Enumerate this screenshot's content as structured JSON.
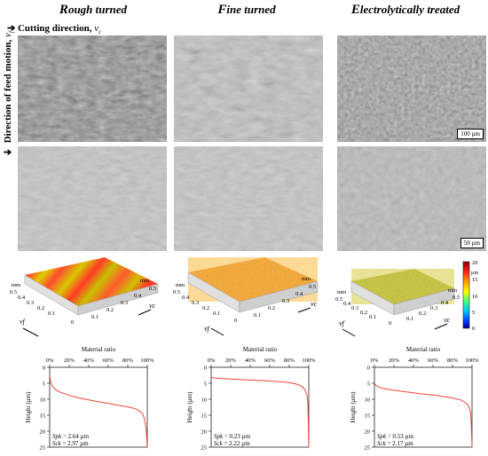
{
  "columns": [
    {
      "first": "R",
      "rest": "ough turned"
    },
    {
      "first": "F",
      "rest": "ine turned"
    },
    {
      "first": "E",
      "rest": "lectrolytically treated"
    }
  ],
  "cutting_direction": {
    "label": "Cutting direction,",
    "symbol": "vc"
  },
  "feed_direction": {
    "label": "Direction of feed motion,",
    "symbol": "vf"
  },
  "scalebars": {
    "top": "100 µm",
    "bottom": "50 µm"
  },
  "topo": {
    "axis_ticks": [
      "0.5",
      "0.4",
      "0.3",
      "0.2",
      "0.1",
      "0"
    ],
    "axis_unit": "mm",
    "vf": "vf",
    "vc": "vc",
    "colorbar": {
      "ticks": [
        "20",
        "15",
        "10",
        "5",
        "0"
      ],
      "unit": "µm"
    }
  },
  "chart_data": [
    {
      "type": "line",
      "title": "",
      "xlabel": "Material ratio",
      "ylabel": "Height (µm)",
      "xticks": [
        "0%",
        "20%",
        "40%",
        "60%",
        "80%",
        "100%"
      ],
      "yticks": [
        "0",
        "5",
        "10",
        "15",
        "20",
        "25"
      ],
      "xlim": [
        0,
        100
      ],
      "ylim": [
        0,
        25
      ],
      "y_inverted": true,
      "series": [
        {
          "x": [
            0,
            1,
            3,
            6,
            10,
            20,
            30,
            40,
            50,
            60,
            70,
            80,
            88,
            92,
            95,
            97,
            98,
            99,
            99.5,
            100
          ],
          "y": [
            2.5,
            4.6,
            6.0,
            7.0,
            7.7,
            8.8,
            9.6,
            10.2,
            10.8,
            11.3,
            11.9,
            12.4,
            13.0,
            13.6,
            14.5,
            16.0,
            17.5,
            20.0,
            22.5,
            25
          ]
        }
      ],
      "annotations": [
        {
          "label": "Spk",
          "value": " = 2.64 µm"
        },
        {
          "label": "Sck",
          "value": " = 2.97 µm"
        }
      ]
    },
    {
      "type": "line",
      "title": "",
      "xlabel": "Material ratio",
      "ylabel": "Height (µm)",
      "xticks": [
        "0%",
        "20%",
        "40%",
        "60%",
        "80%",
        "100%"
      ],
      "yticks": [
        "0",
        "5",
        "10",
        "15",
        "20",
        "25"
      ],
      "xlim": [
        0,
        100
      ],
      "ylim": [
        0,
        25
      ],
      "y_inverted": true,
      "series": [
        {
          "x": [
            0,
            2,
            5,
            10,
            20,
            30,
            40,
            50,
            60,
            70,
            80,
            88,
            93,
            96,
            98,
            99,
            99.5,
            100
          ],
          "y": [
            3.1,
            3.3,
            3.4,
            3.5,
            3.7,
            3.85,
            4.0,
            4.15,
            4.3,
            4.5,
            4.8,
            5.3,
            6.0,
            7.0,
            8.5,
            11.0,
            16.0,
            25
          ]
        }
      ],
      "annotations": [
        {
          "label": "Spk",
          "value": " = 0.23 µm"
        },
        {
          "label": "Sck",
          "value": " = 2.22 µm"
        }
      ]
    },
    {
      "type": "line",
      "title": "",
      "xlabel": "Material ratio",
      "ylabel": "Height (µm)",
      "xticks": [
        "0%",
        "20%",
        "40%",
        "60%",
        "80%",
        "100%"
      ],
      "yticks": [
        "0",
        "5",
        "10",
        "15",
        "20",
        "25"
      ],
      "xlim": [
        0,
        100
      ],
      "ylim": [
        0,
        25
      ],
      "y_inverted": true,
      "series": [
        {
          "x": [
            0,
            2,
            5,
            10,
            20,
            30,
            40,
            50,
            60,
            70,
            80,
            88,
            92,
            95,
            97,
            98.5,
            99.3,
            100
          ],
          "y": [
            5.0,
            5.8,
            6.3,
            6.7,
            7.2,
            7.6,
            8.0,
            8.4,
            8.7,
            9.1,
            9.6,
            10.2,
            10.8,
            11.5,
            12.5,
            14.0,
            18.0,
            25
          ]
        }
      ],
      "annotations": [
        {
          "label": "Spk",
          "value": " = 0.53 µm"
        },
        {
          "label": "Sck",
          "value": " = 2.17 µm"
        }
      ]
    }
  ]
}
